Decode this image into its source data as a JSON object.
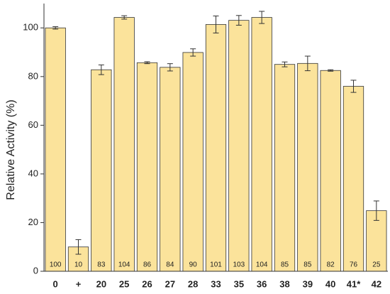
{
  "chart_data": {
    "type": "bar",
    "y_label": "Relative Activity (%)",
    "categories": [
      "0",
      "+",
      "20",
      "25",
      "26",
      "27",
      "28",
      "33",
      "35",
      "36",
      "38",
      "39",
      "40",
      "41*",
      "42"
    ],
    "values": [
      100,
      10,
      82.8,
      104.3,
      85.7,
      83.8,
      89.9,
      101.4,
      103.1,
      104.3,
      85,
      85.4,
      82.5,
      76,
      24.9
    ],
    "value_labels": [
      "100",
      "10",
      "83",
      "104",
      "86",
      "84",
      "90",
      "101",
      "103",
      "104",
      "85",
      "85",
      "82",
      "76",
      "25"
    ],
    "errors": [
      0.5,
      3,
      2,
      0.7,
      0.4,
      1.5,
      1.5,
      3.5,
      2,
      2.5,
      1,
      3,
      0.3,
      2.5,
      4
    ],
    "color": "#fbe39b",
    "ylim": [
      0,
      110
    ],
    "yticks": [
      0,
      20,
      40,
      60,
      80,
      100
    ],
    "grid": false
  }
}
